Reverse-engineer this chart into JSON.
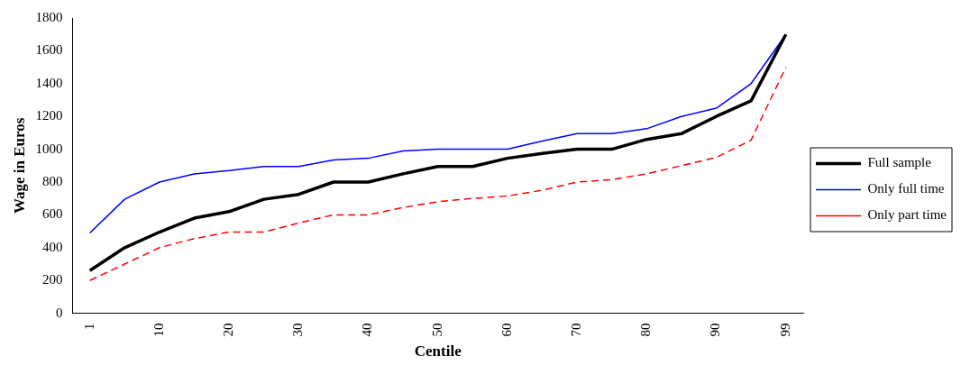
{
  "chart_data": {
    "type": "line",
    "xlabel": "Centile",
    "ylabel": "Wage in Euros",
    "categories": [
      "1",
      null,
      "10",
      null,
      "20",
      null,
      "30",
      null,
      "40",
      null,
      "50",
      null,
      "60",
      null,
      "70",
      null,
      "80",
      null,
      "90",
      null,
      "99"
    ],
    "series": [
      {
        "name": "Full sample",
        "color": "#000000",
        "line_style": "solid",
        "values": [
          260,
          400,
          495,
          580,
          620,
          695,
          725,
          800,
          800,
          850,
          895,
          895,
          945,
          975,
          1000,
          1000,
          1060,
          1095,
          1200,
          1295,
          1700
        ]
      },
      {
        "name": "Only full time",
        "color": "#0000ff",
        "line_style": "solid",
        "values": [
          490,
          695,
          800,
          850,
          870,
          895,
          895,
          935,
          945,
          990,
          1000,
          1000,
          1000,
          1050,
          1095,
          1095,
          1125,
          1200,
          1250,
          1400,
          1700
        ]
      },
      {
        "name": "Only part time",
        "color": "#ff0000",
        "line_style": "dashed",
        "values": [
          200,
          300,
          400,
          455,
          495,
          495,
          550,
          600,
          600,
          645,
          680,
          700,
          715,
          750,
          800,
          815,
          850,
          900,
          950,
          1055,
          1500
        ]
      }
    ],
    "ylim": [
      0,
      1800
    ],
    "yticks": [
      0,
      200,
      400,
      600,
      800,
      1000,
      1200,
      1400,
      1600,
      1800
    ],
    "grid": false,
    "legend": "right",
    "marker": "none"
  }
}
